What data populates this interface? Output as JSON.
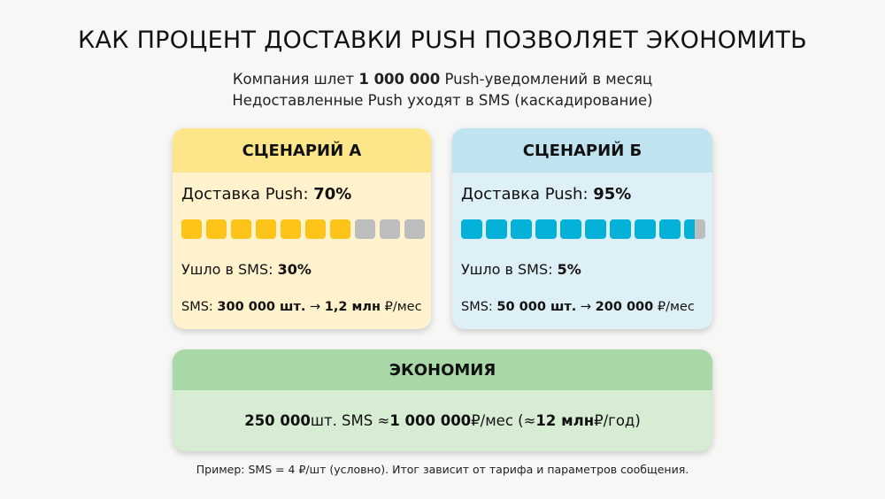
{
  "title": "КАК ПРОЦЕНТ ДОСТАВКИ PUSH ПОЗВОЛЯЕТ ЭКОНОМИТЬ",
  "subtitle": {
    "l1_pre": "Компания шлет ",
    "l1_bold": "1 000 000",
    "l1_post": " Push-уведомлений в месяц",
    "l2": "Недоставленные Push уходят в SMS (каскадирование)"
  },
  "scenarios": [
    {
      "title": "СЦЕНАРИЙ А",
      "delivery_label": "Доставка Push: ",
      "delivery_value": "70%",
      "delivery_fraction": 0.7,
      "sms_label": "Ушло в SMS: ",
      "sms_value": "30%",
      "cost_label": "SMS: ",
      "cost_count": "300 000 шт.",
      "arrow": " → ",
      "cost_amount": "1,2 млн",
      "cost_unit": " ₽/мес",
      "accent": "#fcc419",
      "header_bg": "#fde68a",
      "body_bg": "#fff2cc"
    },
    {
      "title": "СЦЕНАРИЙ Б",
      "delivery_label": "Доставка Push: ",
      "delivery_value": "95%",
      "delivery_fraction": 0.95,
      "sms_label": "Ушло в SMS: ",
      "sms_value": "5%",
      "cost_label": "SMS: ",
      "cost_count": "50 000 шт.",
      "arrow": " → ",
      "cost_amount": "200 000",
      "cost_unit": " ₽/мес",
      "accent": "#03b1d9",
      "header_bg": "#bfe4f0",
      "body_bg": "#ddeff7"
    }
  ],
  "savings": {
    "title": "ЭКОНОМИЯ",
    "count": "250 000",
    "t1": " шт. SMS ≈ ",
    "amount": "1 000 000",
    "t2": " ₽/мес (≈ ",
    "year": "12 млн",
    "t3": " ₽/год)",
    "header_bg": "#a8d8a8",
    "body_bg": "#d6edd4"
  },
  "footnote": "Пример: SMS = 4 ₽/шт (условно). Итог зависит от тарифа и параметров сообщения."
}
